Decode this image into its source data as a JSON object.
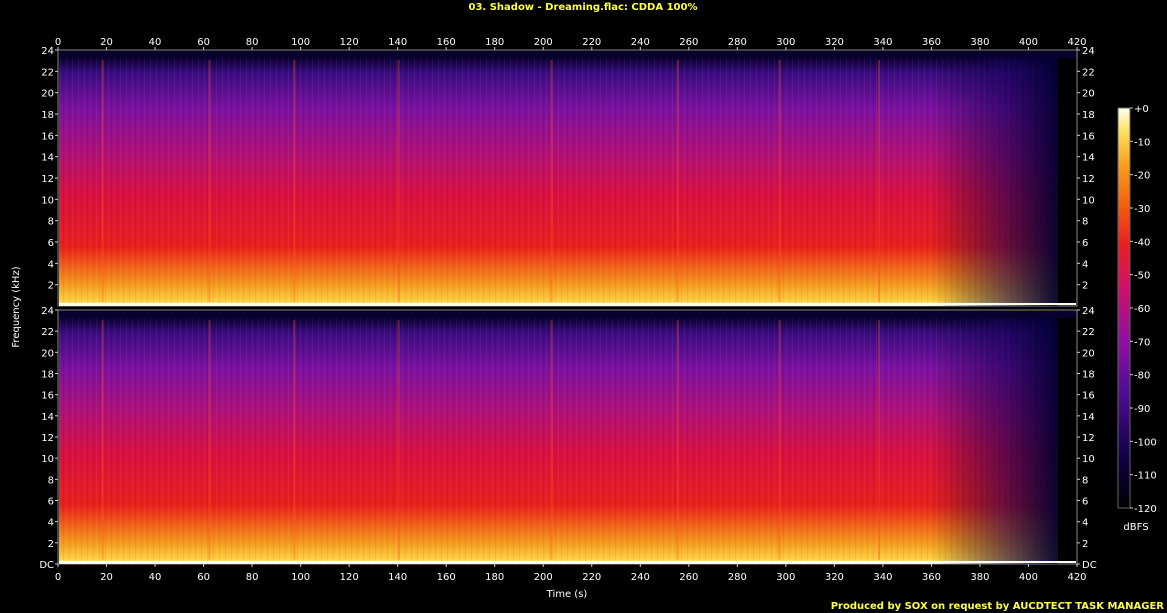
{
  "chart_data": {
    "type": "heatmap",
    "title": "03. Shadow - Dreaming.flac: CDDA 100%",
    "xlabel": "Time (s)",
    "ylabel": "Frequency (kHz)",
    "xlim": [
      0,
      420
    ],
    "x_ticks": [
      0,
      20,
      40,
      60,
      80,
      100,
      120,
      140,
      160,
      180,
      200,
      220,
      240,
      260,
      280,
      300,
      320,
      340,
      360,
      380,
      400,
      420
    ],
    "channels": [
      {
        "ylim": [
          0,
          24
        ],
        "y_ticks": [
          "DC",
          "2",
          "4",
          "6",
          "8",
          "10",
          "12",
          "14",
          "16",
          "18",
          "20",
          "22",
          "24"
        ]
      },
      {
        "ylim": [
          0,
          24
        ],
        "y_ticks": [
          "DC",
          "2",
          "4",
          "6",
          "8",
          "10",
          "12",
          "14",
          "16",
          "18",
          "20",
          "22",
          "24"
        ]
      }
    ],
    "colorbar": {
      "unit": "dBFS",
      "range": [
        -120,
        0
      ],
      "ticks": [
        "+0",
        "-10",
        "-20",
        "-30",
        "-40",
        "-50",
        "-60",
        "-70",
        "-80",
        "-90",
        "-100",
        "-110",
        "-120"
      ]
    },
    "credit": "Produced by SOX on request by AUCDTECT TASK MANAGER",
    "colors": {
      "high": "#ffffe0",
      "mid_high": "#ffb000",
      "mid": "#e01010",
      "mid_low": "#9010b0",
      "low": "#1a0050",
      "floor": "#000000"
    }
  }
}
